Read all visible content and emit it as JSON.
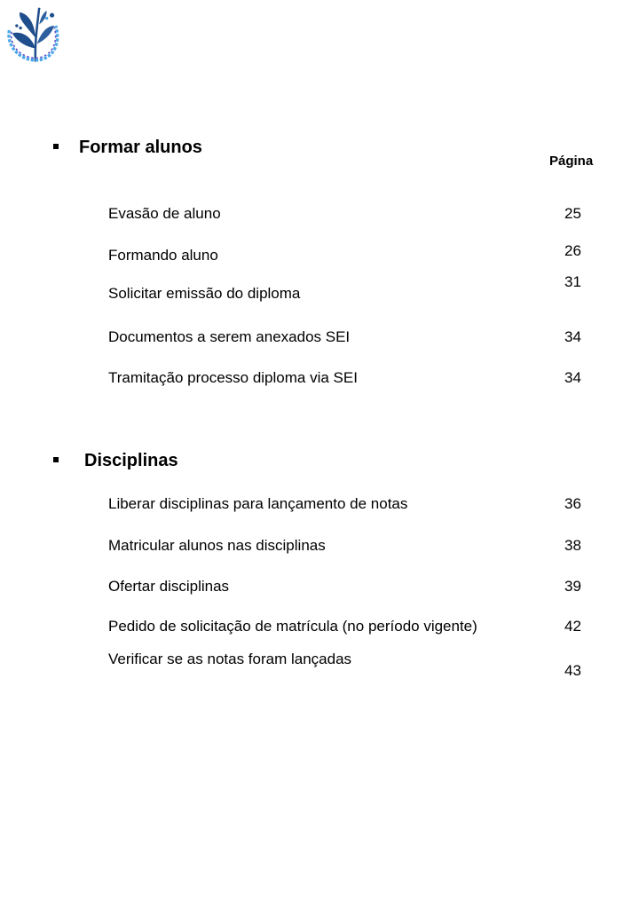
{
  "logo": {
    "icon": "plant-dna-logo",
    "colors": [
      "#1f4e8c",
      "#4aa8e8",
      "#6a5acd"
    ]
  },
  "page_column_label": "Página",
  "sections": [
    {
      "title": "Formar alunos",
      "items": [
        {
          "label": "Evasão de aluno",
          "page": "25"
        },
        {
          "label": "Formando aluno",
          "page": "26"
        },
        {
          "label": "Solicitar emissão do diploma",
          "page": "31"
        },
        {
          "label": "Documentos a serem anexados SEI",
          "page": "34"
        },
        {
          "label": "Tramitação processo diploma via SEI",
          "page": "34"
        }
      ]
    },
    {
      "title": "Disciplinas",
      "items": [
        {
          "label": "Liberar disciplinas para lançamento de notas",
          "page": "36"
        },
        {
          "label": "Matricular alunos nas disciplinas",
          "page": "38"
        },
        {
          "label": "Ofertar disciplinas",
          "page": "39"
        },
        {
          "label": "Pedido de solicitação de matrícula (no período vigente)",
          "page": "42"
        },
        {
          "label": "Verificar se as notas foram lançadas",
          "page": "43"
        }
      ]
    }
  ]
}
